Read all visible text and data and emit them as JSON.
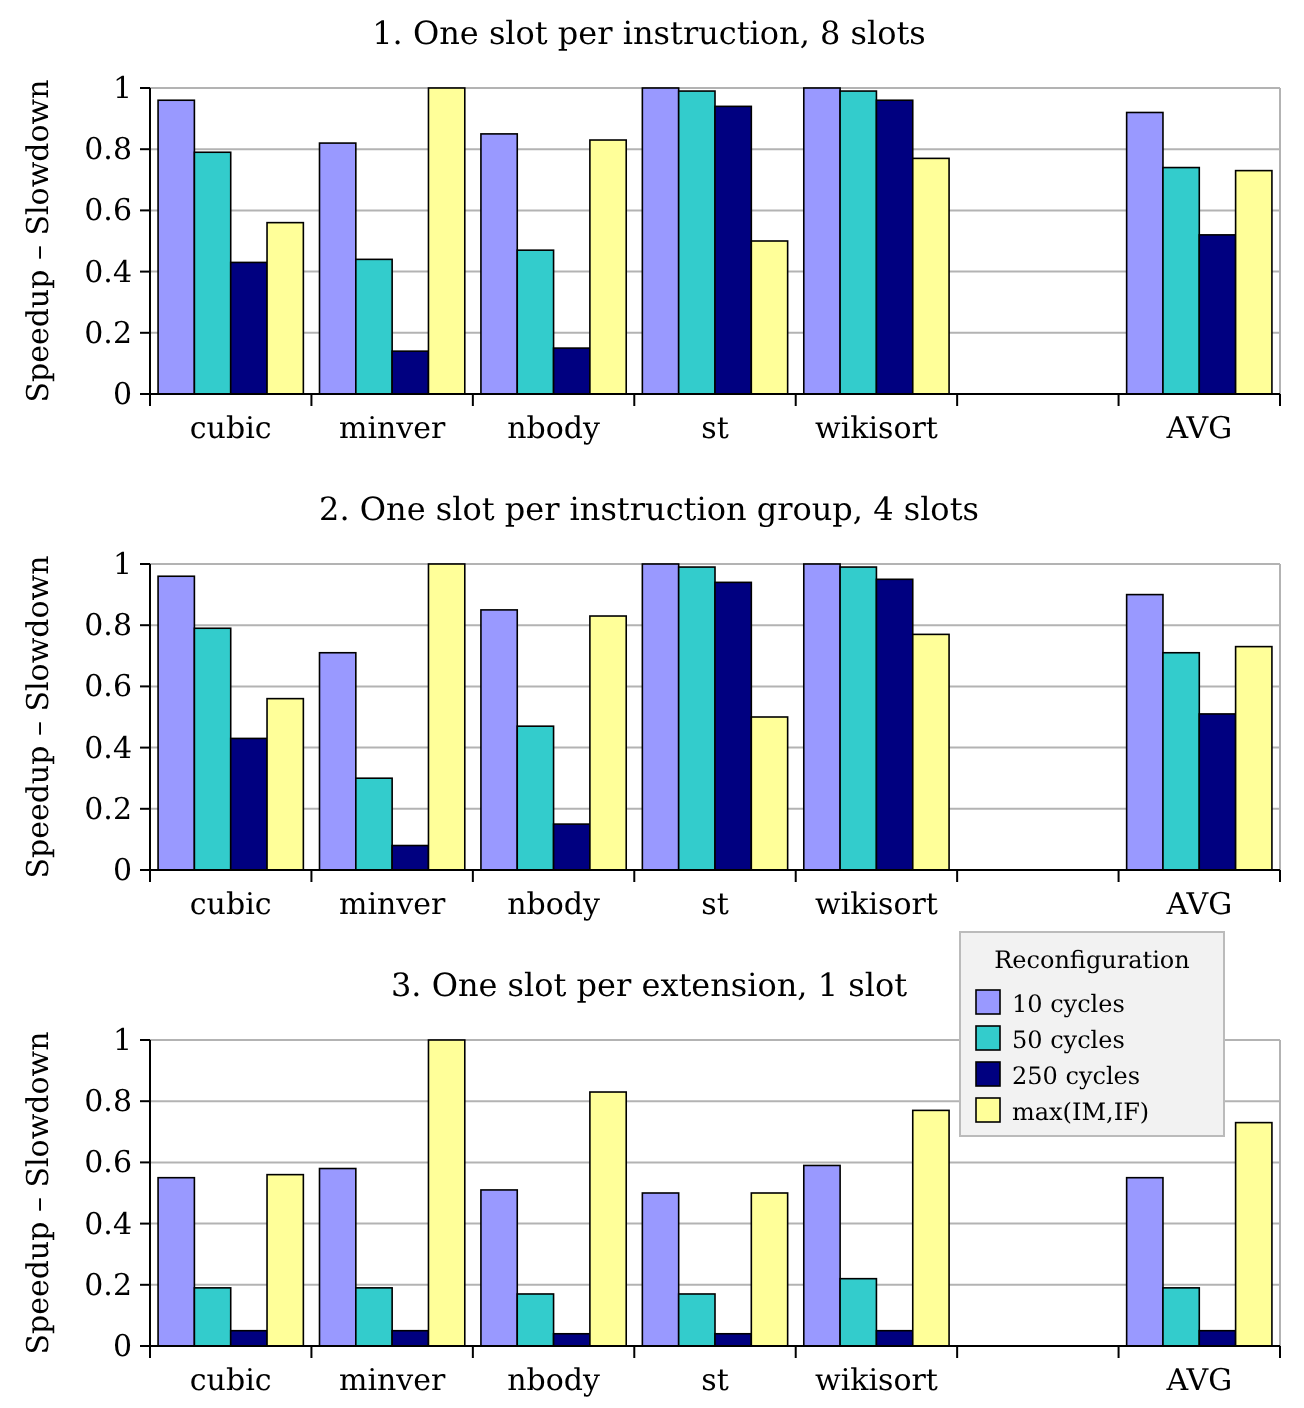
{
  "chart_data": [
    {
      "type": "bar",
      "title": "1. One slot per instruction, 8 slots",
      "ylabel": "Speedup – Slowdown",
      "categories": [
        "cubic",
        "minver",
        "nbody",
        "st",
        "wikisort",
        null,
        "AVG"
      ],
      "ylim": [
        0,
        1
      ],
      "yticks": [
        0,
        0.2,
        0.4,
        0.6,
        0.8,
        1
      ],
      "grid": "y",
      "legend": false,
      "series": [
        {
          "color": "#9999ff",
          "values": [
            0.96,
            0.82,
            0.85,
            1,
            1,
            null,
            0.92
          ]
        },
        {
          "color": "#33cccc",
          "values": [
            0.79,
            0.44,
            0.47,
            0.99,
            0.99,
            null,
            0.74
          ]
        },
        {
          "color": "#000080",
          "values": [
            0.43,
            0.14,
            0.15,
            0.94,
            0.96,
            null,
            0.52
          ]
        },
        {
          "color": "#ffff99",
          "values": [
            0.56,
            1,
            0.83,
            0.5,
            0.77,
            null,
            0.73
          ]
        }
      ]
    },
    {
      "type": "bar",
      "title": "2. One slot per instruction group, 4 slots",
      "ylabel": "Speedup – Slowdown",
      "categories": [
        "cubic",
        "minver",
        "nbody",
        "st",
        "wikisort",
        null,
        "AVG"
      ],
      "ylim": [
        0,
        1
      ],
      "yticks": [
        0,
        0.2,
        0.4,
        0.6,
        0.8,
        1
      ],
      "grid": "y",
      "legend": false,
      "series": [
        {
          "color": "#9999ff",
          "values": [
            0.96,
            0.71,
            0.85,
            1,
            1,
            null,
            0.9
          ]
        },
        {
          "color": "#33cccc",
          "values": [
            0.79,
            0.3,
            0.47,
            0.99,
            0.99,
            null,
            0.71
          ]
        },
        {
          "color": "#000080",
          "values": [
            0.43,
            0.08,
            0.15,
            0.94,
            0.95,
            null,
            0.51
          ]
        },
        {
          "color": "#ffff99",
          "values": [
            0.56,
            1,
            0.83,
            0.5,
            0.77,
            null,
            0.73
          ]
        }
      ]
    },
    {
      "type": "bar",
      "title": "3. One slot per extension, 1 slot",
      "ylabel": "Speedup – Slowdown",
      "categories": [
        "cubic",
        "minver",
        "nbody",
        "st",
        "wikisort",
        null,
        "AVG"
      ],
      "ylim": [
        0,
        1
      ],
      "yticks": [
        0,
        0.2,
        0.4,
        0.6,
        0.8,
        1
      ],
      "grid": "y",
      "legend": "top right",
      "legend_title": "Reconfiguration",
      "series": [
        {
          "name": "10 cycles",
          "color": "#9999ff",
          "values": [
            0.55,
            0.58,
            0.51,
            0.5,
            0.59,
            null,
            0.55
          ]
        },
        {
          "name": "50 cycles",
          "color": "#33cccc",
          "values": [
            0.19,
            0.19,
            0.17,
            0.17,
            0.22,
            null,
            0.19
          ]
        },
        {
          "name": "250 cycles",
          "color": "#000080",
          "values": [
            0.05,
            0.05,
            0.04,
            0.04,
            0.05,
            null,
            0.05
          ]
        },
        {
          "name": "max(IM,IF)",
          "color": "#ffff99",
          "values": [
            0.56,
            1,
            0.83,
            0.5,
            0.77,
            null,
            0.73
          ]
        }
      ]
    }
  ]
}
